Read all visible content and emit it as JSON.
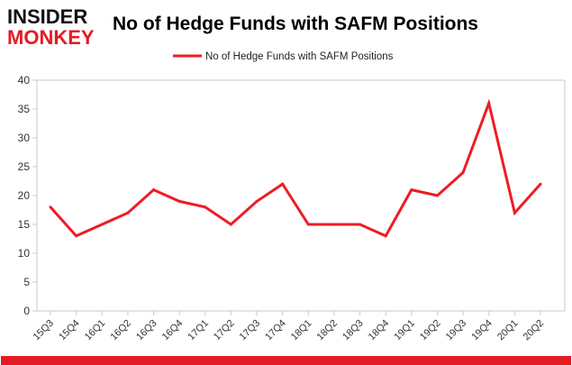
{
  "logo": {
    "line1": "INSIDER",
    "line2": "MONKEY"
  },
  "chart_data": {
    "type": "line",
    "title": "No of Hedge Funds with SAFM Positions",
    "xlabel": "",
    "ylabel": "",
    "legend_position": "top-center",
    "grid": false,
    "ylim": [
      0,
      40
    ],
    "yticks": [
      0,
      5,
      10,
      15,
      20,
      25,
      30,
      35,
      40
    ],
    "categories": [
      "15Q3",
      "15Q4",
      "16Q1",
      "16Q2",
      "16Q3",
      "16Q4",
      "17Q1",
      "17Q2",
      "17Q3",
      "17Q4",
      "18Q1",
      "18Q2",
      "18Q3",
      "18Q4",
      "19Q1",
      "19Q2",
      "19Q3",
      "19Q4",
      "20Q1",
      "20Q2"
    ],
    "series": [
      {
        "name": "No of Hedge Funds with SAFM Positions",
        "color": "#ee1c25",
        "values": [
          18,
          13,
          15,
          17,
          21,
          19,
          18,
          15,
          19,
          22,
          15,
          15,
          15,
          13,
          21,
          20,
          24,
          36,
          17,
          22
        ]
      }
    ]
  }
}
